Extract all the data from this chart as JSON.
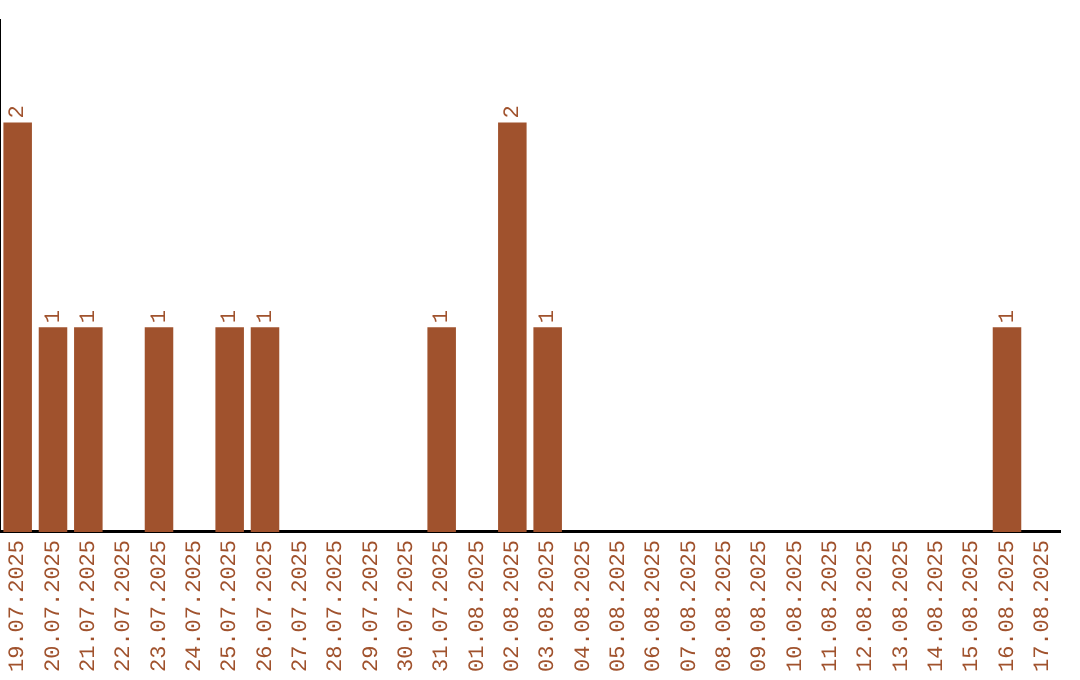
{
  "chart_data": {
    "type": "bar",
    "categories": [
      "19.07.2025",
      "20.07.2025",
      "21.07.2025",
      "22.07.2025",
      "23.07.2025",
      "24.07.2025",
      "25.07.2025",
      "26.07.2025",
      "27.07.2025",
      "28.07.2025",
      "29.07.2025",
      "30.07.2025",
      "31.07.2025",
      "01.08.2025",
      "02.08.2025",
      "03.08.2025",
      "04.08.2025",
      "05.08.2025",
      "06.08.2025",
      "07.08.2025",
      "08.08.2025",
      "09.08.2025",
      "10.08.2025",
      "11.08.2025",
      "12.08.2025",
      "13.08.2025",
      "14.08.2025",
      "15.08.2025",
      "16.08.2025",
      "17.08.2025"
    ],
    "values": [
      2,
      1,
      1,
      0,
      1,
      0,
      1,
      1,
      0,
      0,
      0,
      0,
      1,
      0,
      2,
      1,
      0,
      0,
      0,
      0,
      0,
      0,
      0,
      0,
      0,
      0,
      0,
      0,
      1,
      0
    ],
    "value_labels": [
      "2",
      "1",
      "1",
      null,
      "1",
      null,
      "1",
      "1",
      null,
      null,
      null,
      null,
      "1",
      null,
      "2",
      "1",
      null,
      null,
      null,
      null,
      null,
      null,
      null,
      null,
      null,
      null,
      null,
      null,
      "1",
      null
    ],
    "color": "#a0522d",
    "grid": false,
    "legend": false,
    "tick_labels": "x"
  }
}
